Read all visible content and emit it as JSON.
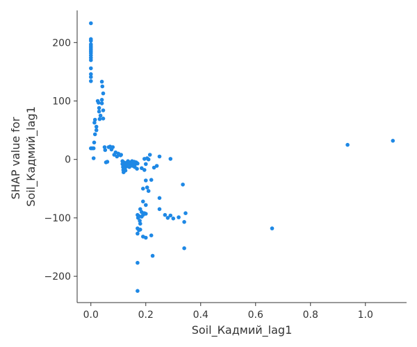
{
  "chart_data": {
    "type": "scatter",
    "title": "",
    "xlabel": "Soil_Кадмий_lag1",
    "ylabel_lines": [
      "SHAP value for",
      "Soil_Кадмий_lag1"
    ],
    "xlim": [
      -0.05,
      1.15
    ],
    "ylim": [
      -245,
      255
    ],
    "x_ticks": [
      0.0,
      0.2,
      0.4,
      0.6,
      0.8,
      1.0
    ],
    "x_tick_labels": [
      "0.0",
      "0.2",
      "0.4",
      "0.6",
      "0.8",
      "1.0"
    ],
    "y_ticks": [
      -200,
      -100,
      0,
      100,
      200
    ],
    "y_tick_labels": [
      "−200",
      "−100",
      "0",
      "100",
      "200"
    ],
    "point_color": "#1e88e5",
    "grid": false,
    "points": [
      [
        0.0,
        233
      ],
      [
        0.0,
        206
      ],
      [
        0.0,
        203
      ],
      [
        0.0,
        197
      ],
      [
        0.0,
        194
      ],
      [
        0.0,
        191
      ],
      [
        0.0,
        188
      ],
      [
        0.0,
        185
      ],
      [
        0.0,
        182
      ],
      [
        0.0,
        178
      ],
      [
        0.0,
        174
      ],
      [
        0.0,
        170
      ],
      [
        0.0,
        156
      ],
      [
        0.0,
        146
      ],
      [
        0.0,
        141
      ],
      [
        0.0,
        134
      ],
      [
        0.0,
        19
      ],
      [
        0.005,
        19
      ],
      [
        0.01,
        19
      ],
      [
        0.01,
        2
      ],
      [
        0.012,
        29
      ],
      [
        0.015,
        43
      ],
      [
        0.013,
        63
      ],
      [
        0.015,
        68
      ],
      [
        0.02,
        50
      ],
      [
        0.02,
        56
      ],
      [
        0.025,
        100
      ],
      [
        0.028,
        97
      ],
      [
        0.03,
        88
      ],
      [
        0.03,
        82
      ],
      [
        0.035,
        75
      ],
      [
        0.032,
        69
      ],
      [
        0.04,
        133
      ],
      [
        0.042,
        125
      ],
      [
        0.045,
        113
      ],
      [
        0.04,
        102
      ],
      [
        0.04,
        96
      ],
      [
        0.045,
        84
      ],
      [
        0.045,
        70
      ],
      [
        0.05,
        21
      ],
      [
        0.052,
        16
      ],
      [
        0.055,
        -5
      ],
      [
        0.06,
        -4
      ],
      [
        0.065,
        21
      ],
      [
        0.07,
        22
      ],
      [
        0.075,
        17
      ],
      [
        0.08,
        21
      ],
      [
        0.085,
        8
      ],
      [
        0.09,
        12
      ],
      [
        0.095,
        5
      ],
      [
        0.1,
        10
      ],
      [
        0.105,
        8
      ],
      [
        0.11,
        8
      ],
      [
        0.108,
        7
      ],
      [
        0.115,
        -3
      ],
      [
        0.115,
        -8
      ],
      [
        0.117,
        -13
      ],
      [
        0.118,
        -18
      ],
      [
        0.119,
        -22
      ],
      [
        0.12,
        -5
      ],
      [
        0.122,
        -10
      ],
      [
        0.124,
        -15
      ],
      [
        0.126,
        -19
      ],
      [
        0.128,
        -6
      ],
      [
        0.13,
        -12
      ],
      [
        0.132,
        -8
      ],
      [
        0.135,
        -3
      ],
      [
        0.138,
        -9
      ],
      [
        0.14,
        -13
      ],
      [
        0.142,
        -5
      ],
      [
        0.145,
        -10
      ],
      [
        0.148,
        -7
      ],
      [
        0.15,
        -3
      ],
      [
        0.152,
        -11
      ],
      [
        0.155,
        -6
      ],
      [
        0.158,
        -4
      ],
      [
        0.16,
        -13
      ],
      [
        0.162,
        -8
      ],
      [
        0.165,
        -5
      ],
      [
        0.17,
        -7
      ],
      [
        0.168,
        -16
      ],
      [
        0.185,
        -15
      ],
      [
        0.195,
        -18
      ],
      [
        0.2,
        -8
      ],
      [
        0.195,
        1
      ],
      [
        0.205,
        2
      ],
      [
        0.21,
        0
      ],
      [
        0.215,
        8
      ],
      [
        0.23,
        -14
      ],
      [
        0.24,
        -11
      ],
      [
        0.25,
        5
      ],
      [
        0.29,
        1
      ],
      [
        0.19,
        -50
      ],
      [
        0.2,
        -36
      ],
      [
        0.205,
        -48
      ],
      [
        0.21,
        -54
      ],
      [
        0.22,
        -35
      ],
      [
        0.19,
        -72
      ],
      [
        0.2,
        -78
      ],
      [
        0.18,
        -85
      ],
      [
        0.185,
        -90
      ],
      [
        0.17,
        -95
      ],
      [
        0.172,
        -100
      ],
      [
        0.175,
        -97
      ],
      [
        0.178,
        -105
      ],
      [
        0.18,
        -110
      ],
      [
        0.185,
        -98
      ],
      [
        0.19,
        -95
      ],
      [
        0.195,
        -92
      ],
      [
        0.2,
        -93
      ],
      [
        0.17,
        -118
      ],
      [
        0.175,
        -121
      ],
      [
        0.18,
        -120
      ],
      [
        0.17,
        -127
      ],
      [
        0.19,
        -132
      ],
      [
        0.2,
        -134
      ],
      [
        0.22,
        -130
      ],
      [
        0.225,
        -165
      ],
      [
        0.17,
        -177
      ],
      [
        0.17,
        -225
      ],
      [
        0.25,
        -66
      ],
      [
        0.25,
        -85
      ],
      [
        0.27,
        -95
      ],
      [
        0.28,
        -100
      ],
      [
        0.29,
        -96
      ],
      [
        0.3,
        -101
      ],
      [
        0.32,
        -99
      ],
      [
        0.335,
        -43
      ],
      [
        0.34,
        -107
      ],
      [
        0.345,
        -92
      ],
      [
        0.34,
        -152
      ],
      [
        0.66,
        -118
      ],
      [
        0.935,
        25
      ],
      [
        1.1,
        32
      ]
    ]
  }
}
